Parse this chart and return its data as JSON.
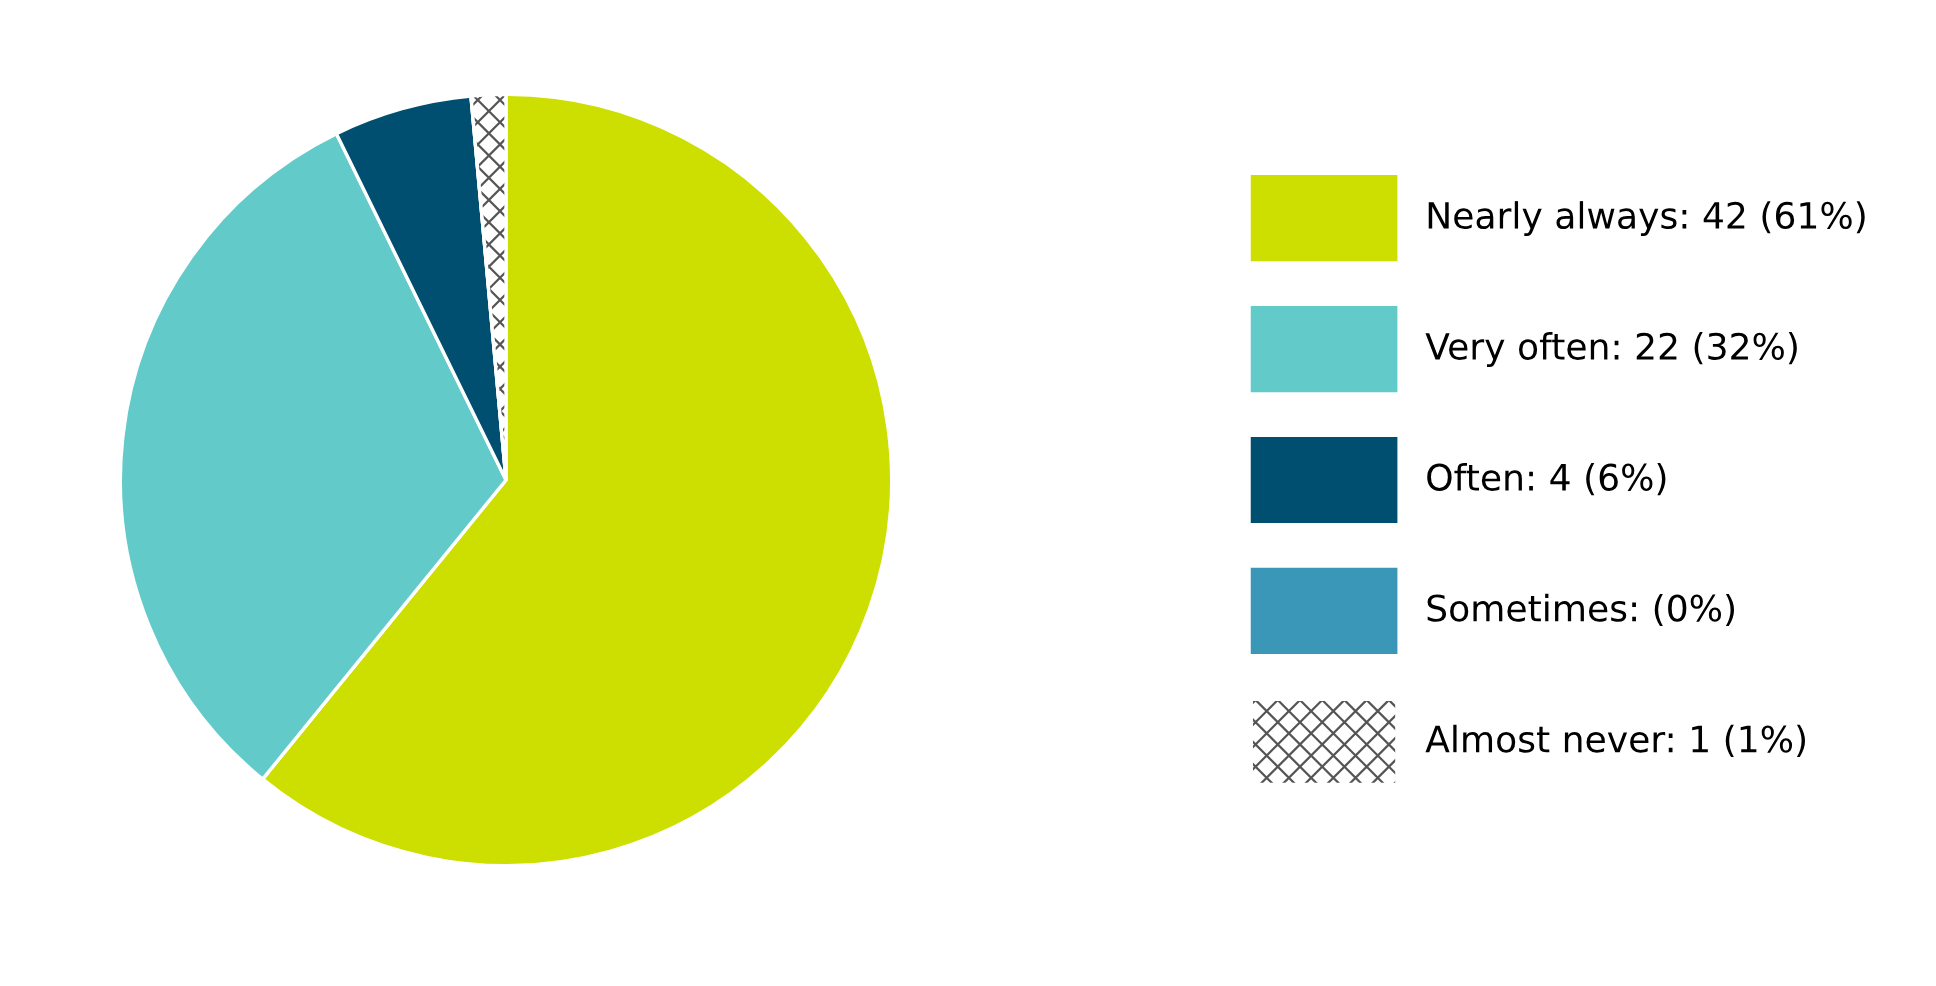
{
  "chart_data": {
    "type": "pie",
    "categories": [
      "Nearly always: 42 (61%)",
      "Very often: 22 (32%)",
      "Often: 4 (6%)",
      "Sometimes: (0%)",
      "Almost never: 1 (1%)"
    ],
    "values": [
      42,
      22,
      4,
      0,
      1
    ],
    "colors": [
      "#cddf00",
      "#62cbc9",
      "#004f71",
      "#3a97b8",
      "#ffffff"
    ],
    "legend": "right"
  }
}
